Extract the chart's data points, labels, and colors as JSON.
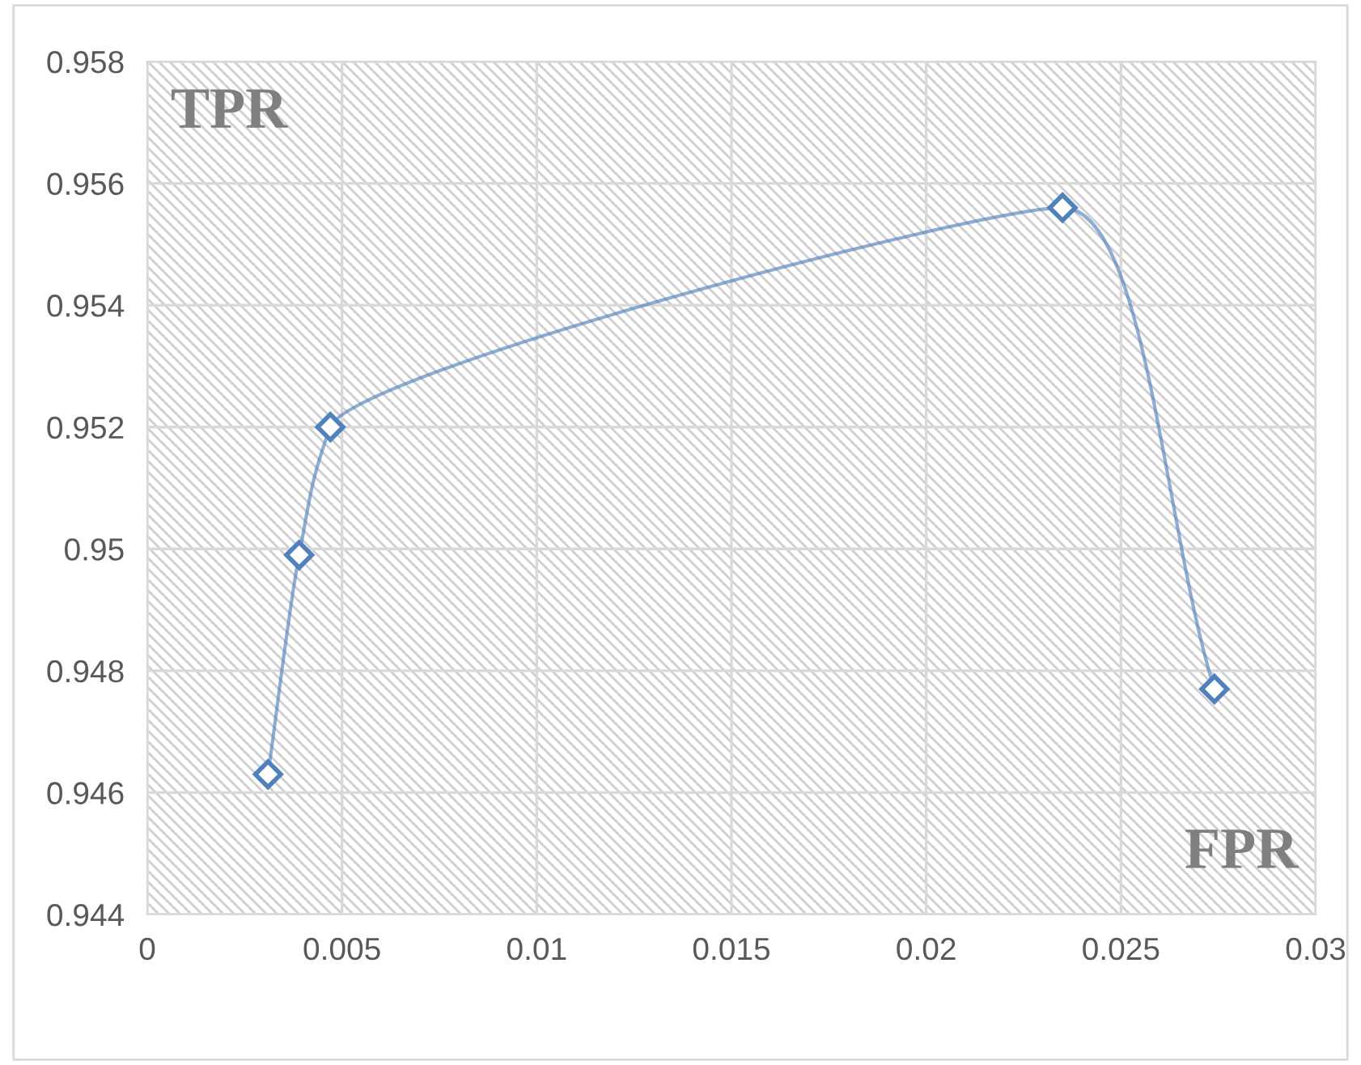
{
  "chart_data": {
    "type": "line",
    "xlabel": "FPR",
    "ylabel": "TPR",
    "x": [
      0.0031,
      0.0039,
      0.0047,
      0.0235,
      0.0274
    ],
    "series": [
      {
        "color": "#4f81bd",
        "values": [
          0.9463,
          0.9499,
          0.952,
          0.9556,
          0.9477
        ]
      }
    ],
    "xlim": [
      0,
      0.03
    ],
    "xticks": [
      0,
      0.005,
      0.01,
      0.015,
      0.02,
      0.025,
      0.03
    ],
    "ylim": [
      0.944,
      0.958
    ],
    "yticks": [
      0.944,
      0.946,
      0.948,
      0.95,
      0.952,
      0.954,
      0.956,
      0.958
    ],
    "grid": true,
    "marker": "diamond",
    "line_style": "solid"
  }
}
